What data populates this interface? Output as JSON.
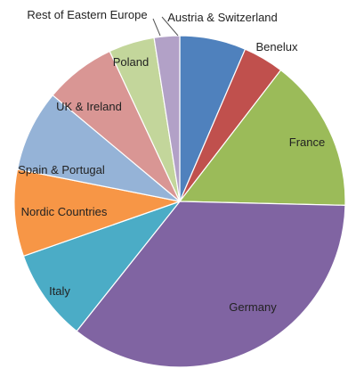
{
  "chart_data": {
    "type": "pie",
    "title": "",
    "start_angle_deg": 0,
    "direction": "clockwise",
    "slices": [
      {
        "label": "Austria & Switzerland",
        "value": 6.5,
        "color": "#4f81bd"
      },
      {
        "label": "Benelux",
        "value": 4.0,
        "color": "#c0504d"
      },
      {
        "label": "France",
        "value": 15.0,
        "color": "#9bbb59"
      },
      {
        "label": "Germany",
        "value": 35.5,
        "color": "#8064a2"
      },
      {
        "label": "Italy",
        "value": 9.0,
        "color": "#4bacc6"
      },
      {
        "label": "Nordic Countries",
        "value": 8.5,
        "color": "#f79646"
      },
      {
        "label": "Spain & Portugal",
        "value": 8.0,
        "color": "#95b3d7"
      },
      {
        "label": "UK & Ireland",
        "value": 7.0,
        "color": "#d99694"
      },
      {
        "label": "Poland",
        "value": 4.5,
        "color": "#c3d69b"
      },
      {
        "label": "Rest of Eastern Europe",
        "value": 2.5,
        "color": "#b2a1c7"
      }
    ]
  }
}
